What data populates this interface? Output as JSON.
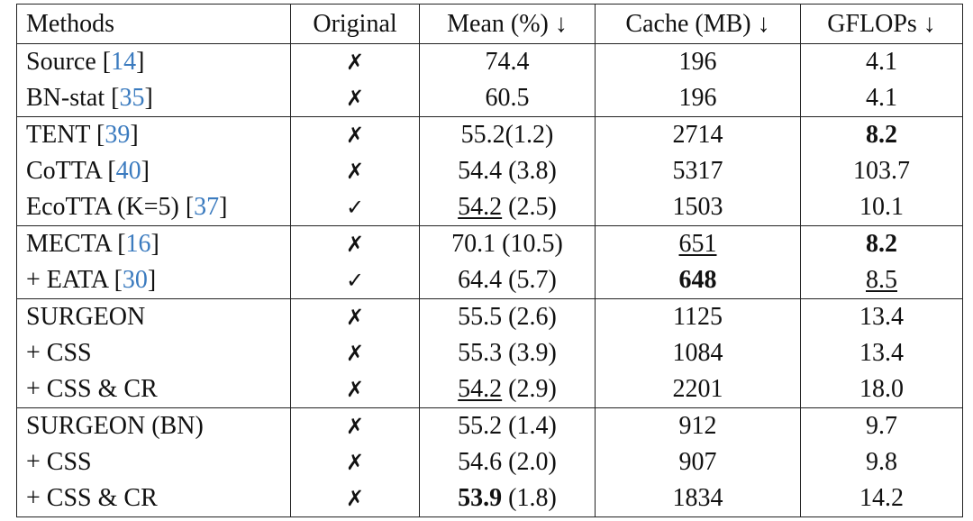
{
  "table": {
    "header": [
      "Methods",
      "Original",
      "Mean (%) ↓",
      "Cache (MB) ↓",
      "GFLOPs ↓"
    ],
    "groups": [
      [
        [
          [
            {
              "text": "Source "
            },
            {
              "text": "["
            },
            {
              "text": "14",
              "style": "cite"
            },
            {
              "text": "]"
            }
          ],
          [
            {
              "text": "✗"
            }
          ],
          [
            {
              "text": "74.4"
            }
          ],
          [
            {
              "text": "196"
            }
          ],
          [
            {
              "text": "4.1"
            }
          ]
        ],
        [
          [
            {
              "text": "BN-stat "
            },
            {
              "text": "["
            },
            {
              "text": "35",
              "style": "cite"
            },
            {
              "text": "]"
            }
          ],
          [
            {
              "text": "✗"
            }
          ],
          [
            {
              "text": "60.5"
            }
          ],
          [
            {
              "text": "196"
            }
          ],
          [
            {
              "text": "4.1"
            }
          ]
        ]
      ],
      [
        [
          [
            {
              "text": "TENT "
            },
            {
              "text": "["
            },
            {
              "text": "39",
              "style": "cite"
            },
            {
              "text": "]"
            }
          ],
          [
            {
              "text": "✗"
            }
          ],
          [
            {
              "text": "55.2(1.2)"
            }
          ],
          [
            {
              "text": "2714"
            }
          ],
          [
            {
              "text": "8.2",
              "style": "bold"
            }
          ]
        ],
        [
          [
            {
              "text": "CoTTA "
            },
            {
              "text": "["
            },
            {
              "text": "40",
              "style": "cite"
            },
            {
              "text": "]"
            }
          ],
          [
            {
              "text": "✗"
            }
          ],
          [
            {
              "text": "54.4 (3.8)"
            }
          ],
          [
            {
              "text": "5317"
            }
          ],
          [
            {
              "text": "103.7"
            }
          ]
        ],
        [
          [
            {
              "text": "EcoTTA (K=5) "
            },
            {
              "text": "["
            },
            {
              "text": "37",
              "style": "cite"
            },
            {
              "text": "]"
            }
          ],
          [
            {
              "text": "✓"
            }
          ],
          [
            {
              "text": "54.2",
              "style": "underline"
            },
            {
              "text": " (2.5)"
            }
          ],
          [
            {
              "text": "1503"
            }
          ],
          [
            {
              "text": "10.1"
            }
          ]
        ]
      ],
      [
        [
          [
            {
              "text": "MECTA "
            },
            {
              "text": "["
            },
            {
              "text": "16",
              "style": "cite"
            },
            {
              "text": "]"
            }
          ],
          [
            {
              "text": "✗"
            }
          ],
          [
            {
              "text": "70.1 (10.5)"
            }
          ],
          [
            {
              "text": "651",
              "style": "underline"
            }
          ],
          [
            {
              "text": "8.2",
              "style": "bold"
            }
          ]
        ],
        [
          [
            {
              "text": "+ EATA "
            },
            {
              "text": "["
            },
            {
              "text": "30",
              "style": "cite"
            },
            {
              "text": "]"
            }
          ],
          [
            {
              "text": "✓"
            }
          ],
          [
            {
              "text": "64.4 (5.7)"
            }
          ],
          [
            {
              "text": "648",
              "style": "bold"
            }
          ],
          [
            {
              "text": "8.5",
              "style": "underline"
            }
          ]
        ]
      ],
      [
        [
          [
            {
              "text": "SURGEON"
            }
          ],
          [
            {
              "text": "✗"
            }
          ],
          [
            {
              "text": "55.5 (2.6)"
            }
          ],
          [
            {
              "text": "1125"
            }
          ],
          [
            {
              "text": "13.4"
            }
          ]
        ],
        [
          [
            {
              "text": "+ CSS"
            }
          ],
          [
            {
              "text": "✗"
            }
          ],
          [
            {
              "text": "55.3 (3.9)"
            }
          ],
          [
            {
              "text": "1084"
            }
          ],
          [
            {
              "text": "13.4"
            }
          ]
        ],
        [
          [
            {
              "text": "+ CSS & CR"
            }
          ],
          [
            {
              "text": "✗"
            }
          ],
          [
            {
              "text": "54.2",
              "style": "underline"
            },
            {
              "text": " (2.9)"
            }
          ],
          [
            {
              "text": "2201"
            }
          ],
          [
            {
              "text": "18.0"
            }
          ]
        ]
      ],
      [
        [
          [
            {
              "text": "SURGEON (BN)"
            }
          ],
          [
            {
              "text": "✗"
            }
          ],
          [
            {
              "text": "55.2 (1.4)"
            }
          ],
          [
            {
              "text": "912"
            }
          ],
          [
            {
              "text": "9.7"
            }
          ]
        ],
        [
          [
            {
              "text": "+ CSS"
            }
          ],
          [
            {
              "text": "✗"
            }
          ],
          [
            {
              "text": "54.6 (2.0)"
            }
          ],
          [
            {
              "text": "907"
            }
          ],
          [
            {
              "text": "9.8"
            }
          ]
        ],
        [
          [
            {
              "text": "+ CSS & CR"
            }
          ],
          [
            {
              "text": "✗"
            }
          ],
          [
            {
              "text": "53.9",
              "style": "bold"
            },
            {
              "text": " (1.8)"
            }
          ],
          [
            {
              "text": "1834"
            }
          ],
          [
            {
              "text": "14.2"
            }
          ]
        ]
      ]
    ]
  }
}
